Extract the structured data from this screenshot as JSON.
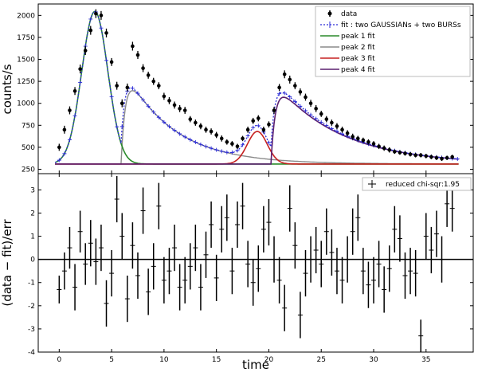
{
  "chart_data": [
    {
      "type": "scatter",
      "xlabel": "",
      "ylabel": "counts/s",
      "xlim": [
        -2,
        39.5
      ],
      "ylim": [
        200,
        2130
      ],
      "yticks": [
        250,
        500,
        750,
        1000,
        1250,
        1500,
        1750,
        2000
      ],
      "grid": false,
      "legend_position": "top-right",
      "legend": [
        "data",
        "fit : two GAUSSIANs + two BURSs",
        "peak 1 fit",
        "peak 2 fit",
        "peak 3 fit",
        "peak 4 fit"
      ],
      "colors": {
        "data": "#000000",
        "fit": "#2b2bd6",
        "peak1": "#2a8a2a",
        "peak2": "#8a8a8a",
        "peak3": "#c62020",
        "peak4": "#5a1f6e"
      },
      "baseline": 310,
      "series": [
        {
          "name": "data",
          "x": [
            0,
            0.5,
            1,
            1.5,
            2,
            2.5,
            3,
            3.5,
            4,
            4.5,
            5,
            5.5,
            6,
            6.5,
            7,
            7.5,
            8,
            8.5,
            9,
            9.5,
            10,
            10.5,
            11,
            11.5,
            12,
            12.5,
            13,
            13.5,
            14,
            14.5,
            15,
            15.5,
            16,
            16.5,
            17,
            17.5,
            18,
            18.5,
            19,
            19.5,
            20,
            20.5,
            21,
            21.5,
            22,
            22.5,
            23,
            23.5,
            24,
            24.5,
            25,
            25.5,
            26,
            26.5,
            27,
            27.5,
            28,
            28.5,
            29,
            29.5,
            30,
            30.5,
            31,
            31.5,
            32,
            32.5,
            33,
            33.5,
            34,
            34.5,
            35,
            35.5,
            36,
            36.5,
            37,
            37.5
          ],
          "y": [
            500,
            700,
            920,
            1140,
            1390,
            1600,
            1830,
            2020,
            2000,
            1800,
            1470,
            1200,
            1000,
            1180,
            1650,
            1550,
            1400,
            1320,
            1250,
            1200,
            1080,
            1030,
            980,
            940,
            920,
            820,
            780,
            740,
            700,
            680,
            640,
            600,
            560,
            540,
            510,
            600,
            700,
            800,
            830,
            700,
            760,
            920,
            1180,
            1330,
            1270,
            1200,
            1130,
            1070,
            1000,
            940,
            880,
            820,
            780,
            740,
            700,
            660,
            620,
            600,
            580,
            560,
            540,
            510,
            490,
            470,
            450,
            440,
            430,
            420,
            410,
            410,
            400,
            390,
            380,
            370,
            380,
            390
          ],
          "yerr": [
            40,
            45,
            45,
            45,
            50,
            50,
            50,
            50,
            50,
            50,
            45,
            45,
            45,
            45,
            50,
            45,
            45,
            40,
            40,
            40,
            40,
            40,
            40,
            40,
            40,
            35,
            35,
            35,
            35,
            35,
            35,
            35,
            30,
            30,
            30,
            30,
            35,
            35,
            35,
            35,
            35,
            40,
            40,
            45,
            45,
            40,
            40,
            40,
            40,
            40,
            35,
            35,
            35,
            35,
            35,
            35,
            35,
            30,
            30,
            30,
            30,
            30,
            30,
            30,
            25,
            25,
            25,
            25,
            25,
            25,
            25,
            25,
            25,
            25,
            25,
            25
          ]
        }
      ],
      "legend_labels": {
        "data": "data",
        "fit": "fit : two GAUSSIANs + two BURSs",
        "peak1": "peak 1 fit",
        "peak2": "peak 2 fit",
        "peak3": "peak 3 fit",
        "peak4": "peak 4 fit"
      }
    },
    {
      "type": "scatter",
      "xlabel": "time",
      "ylabel": "(data − fit)/err",
      "xlim": [
        -2,
        39.5
      ],
      "ylim": [
        -4,
        3.7
      ],
      "xticks": [
        0,
        5,
        10,
        15,
        20,
        25,
        30,
        35
      ],
      "yticks": [
        -4,
        -3,
        -2,
        -1,
        0,
        1,
        2,
        3
      ],
      "grid": false,
      "legend_position": "top-right",
      "legend": [
        "reduced chi-sqr:1.95"
      ],
      "zero_line": 0,
      "series": [
        {
          "name": "reduced chi-sqr:1.95",
          "x": [
            0,
            0.5,
            1,
            1.5,
            2,
            2.5,
            3,
            3.5,
            4,
            4.5,
            5,
            5.5,
            6,
            6.5,
            7,
            7.5,
            8,
            8.5,
            9,
            9.5,
            10,
            10.5,
            11,
            11.5,
            12,
            12.5,
            13,
            13.5,
            14,
            14.5,
            15,
            15.5,
            16,
            16.5,
            17,
            17.5,
            18,
            18.5,
            19,
            19.5,
            20,
            20.5,
            21,
            21.5,
            22,
            22.5,
            23,
            23.5,
            24,
            24.5,
            25,
            25.5,
            26,
            26.5,
            27,
            27.5,
            28,
            28.5,
            29,
            29.5,
            30,
            30.5,
            31,
            31.5,
            32,
            32.5,
            33,
            33.5,
            34,
            34.5,
            35,
            35.5,
            36,
            36.5,
            37,
            37.5
          ],
          "y": [
            -1.3,
            -0.5,
            0.5,
            -1.2,
            1.2,
            -0.2,
            0.7,
            -0.1,
            0.5,
            -1.9,
            -0.6,
            2.6,
            1.0,
            -1.7,
            0.6,
            -0.7,
            2.1,
            -1.4,
            -0.3,
            2.3,
            -0.9,
            -0.5,
            0.5,
            -1.2,
            -0.9,
            -0.3,
            0.5,
            -1.2,
            0.2,
            1.5,
            -0.8,
            1.3,
            1.8,
            -0.5,
            1.5,
            2.3,
            -0.2,
            -1.0,
            -0.4,
            1.3,
            1.6,
            0.0,
            -0.9,
            -2.1,
            2.2,
            0.6,
            -2.4,
            -0.6,
            0.0,
            0.4,
            -0.2,
            1.2,
            0.3,
            -0.5,
            -0.9,
            0.0,
            1.2,
            1.8,
            -0.5,
            -1.1,
            -0.9,
            -0.2,
            -1.3,
            -0.4,
            1.3,
            0.9,
            -0.7,
            -0.5,
            -0.6,
            -3.3,
            1.0,
            0.4,
            1.1,
            0.0,
            2.4,
            2.2
          ],
          "yerr": [
            0.6,
            0.8,
            0.9,
            1.0,
            0.9,
            0.9,
            1.0,
            1.0,
            1.0,
            1.0,
            1.0,
            1.0,
            1.0,
            1.0,
            1.0,
            1.0,
            1.0,
            1.0,
            1.0,
            1.0,
            1.0,
            1.0,
            1.0,
            1.0,
            1.0,
            1.0,
            1.0,
            1.0,
            1.0,
            1.0,
            1.0,
            1.0,
            1.0,
            1.0,
            1.0,
            1.0,
            1.0,
            1.0,
            1.0,
            1.0,
            1.0,
            1.0,
            1.0,
            1.0,
            1.0,
            1.0,
            1.0,
            1.0,
            1.0,
            1.0,
            1.0,
            1.0,
            1.0,
            1.0,
            1.0,
            1.0,
            1.0,
            1.0,
            1.0,
            1.0,
            1.0,
            1.0,
            1.0,
            1.0,
            1.0,
            1.0,
            1.0,
            1.0,
            1.0,
            0.7,
            1.0,
            1.0,
            1.0,
            1.0,
            1.0,
            1.0
          ]
        }
      ]
    }
  ]
}
